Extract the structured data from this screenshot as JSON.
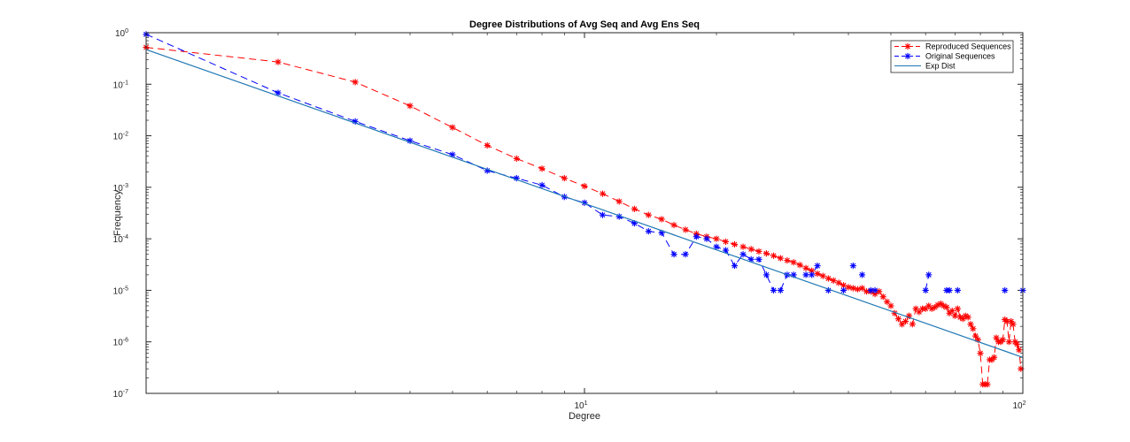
{
  "chart_data": {
    "type": "line",
    "title": "Degree Distributions of Avg Seq and Avg Ens Seq",
    "xlabel": "Degree",
    "ylabel": "Frequency",
    "xscale": "log",
    "yscale": "log",
    "xlim": [
      1,
      100
    ],
    "ylim": [
      1e-07,
      1
    ],
    "grid": false,
    "legend_position": "top-right",
    "x_ticks": [
      {
        "value": 10,
        "base": "10",
        "exp": "1"
      },
      {
        "value": 100,
        "base": "10",
        "exp": "2"
      }
    ],
    "y_ticks": [
      {
        "value": 1,
        "base": "10",
        "exp": "0"
      },
      {
        "value": 0.1,
        "base": "10",
        "exp": "-1"
      },
      {
        "value": 0.01,
        "base": "10",
        "exp": "-2"
      },
      {
        "value": 0.001,
        "base": "10",
        "exp": "-3"
      },
      {
        "value": 0.0001,
        "base": "10",
        "exp": "-4"
      },
      {
        "value": 1e-05,
        "base": "10",
        "exp": "-5"
      },
      {
        "value": 1e-06,
        "base": "10",
        "exp": "-6"
      },
      {
        "value": 1e-07,
        "base": "10",
        "exp": "-7"
      }
    ],
    "series": [
      {
        "name": "Reproduced Sequences",
        "color": "#ff0000",
        "line_style": "dashed",
        "marker": "asterisk",
        "x": [
          1,
          2,
          3,
          4,
          5,
          6,
          7,
          8,
          9,
          10,
          11,
          12,
          13,
          14,
          15,
          16,
          17,
          18,
          19,
          20,
          21,
          22,
          23,
          24,
          25,
          26,
          27,
          28,
          29,
          30,
          31,
          32,
          33,
          34,
          35,
          36,
          37,
          38,
          39,
          40,
          41,
          42,
          43,
          44,
          45,
          46,
          47,
          48,
          49,
          50,
          51,
          52,
          53,
          54,
          55,
          56,
          57,
          58,
          59,
          60,
          61,
          62,
          63,
          64,
          65,
          66,
          67,
          68,
          69,
          70,
          71,
          72,
          73,
          74,
          75,
          76,
          77,
          78,
          79,
          80,
          81,
          82,
          83,
          84,
          85,
          86,
          87,
          88,
          89,
          90,
          91,
          92,
          93,
          94,
          95,
          96,
          97,
          98,
          99
        ],
        "y": [
          0.52,
          0.27,
          0.11,
          0.038,
          0.0145,
          0.0065,
          0.0036,
          0.0023,
          0.0015,
          0.00105,
          0.00075,
          0.00053,
          0.00038,
          0.00029,
          0.00024,
          0.000185,
          0.00015,
          0.000125,
          0.00011,
          0.0001,
          8.8e-05,
          7.8e-05,
          7e-05,
          6.3e-05,
          5.7e-05,
          5.2e-05,
          4.7e-05,
          4.2e-05,
          3.8e-05,
          3.5e-05,
          3.1e-05,
          2.7e-05,
          2.4e-05,
          2.1e-05,
          1.9e-05,
          1.7e-05,
          1.55e-05,
          1.4e-05,
          1.25e-05,
          1.15e-05,
          1.1e-05,
          1.05e-05,
          1.1e-05,
          9.5e-06,
          9.5e-06,
          8.5e-06,
          9.5e-06,
          7.5e-06,
          6e-06,
          5e-06,
          3.6e-06,
          2.8e-06,
          2.2e-06,
          2.5e-06,
          3.2e-06,
          2.2e-06,
          4.4e-06,
          3.8e-06,
          4.4e-06,
          4.4e-06,
          5e-06,
          4.4e-06,
          4.7e-06,
          5.2e-06,
          5.5e-06,
          5e-06,
          4.7e-06,
          3.6e-06,
          4e-06,
          3.2e-06,
          4.4e-06,
          3e-06,
          2.8e-06,
          3.2e-06,
          3e-06,
          2.2e-06,
          1.8e-06,
          1.3e-06,
          1.1e-06,
          6e-07,
          1.5e-07,
          1.5e-07,
          1.5e-07,
          4.5e-07,
          4.5e-07,
          5e-07,
          1.2e-06,
          1e-06,
          1e-06,
          1.1e-06,
          2.7e-06,
          2.5e-06,
          1e-06,
          2.5e-06,
          2.2e-06,
          1e-06,
          9e-07,
          7e-07,
          3e-07
        ]
      },
      {
        "name": "Original Sequences",
        "color": "#0000ff",
        "line_style": "dashed",
        "marker": "asterisk",
        "x": [
          1,
          2,
          3,
          4,
          5,
          6,
          7,
          8,
          9,
          10,
          11,
          12,
          13,
          14,
          15,
          16,
          17,
          18,
          19,
          20,
          21,
          22,
          23,
          24,
          25,
          26,
          27,
          28,
          29,
          30,
          31,
          32,
          33,
          34,
          35,
          36,
          37,
          38,
          39,
          40,
          41,
          42,
          43,
          44,
          45,
          46,
          47,
          48,
          49,
          50,
          51,
          52,
          53,
          54,
          55,
          56,
          57,
          58,
          59,
          60,
          61,
          62,
          63,
          64,
          65,
          66,
          67,
          68,
          69,
          70,
          71,
          72,
          73,
          74,
          75,
          76,
          77,
          78,
          79,
          80,
          81,
          82,
          83,
          84,
          85,
          86,
          87,
          88,
          89,
          90,
          91,
          92,
          93,
          94,
          95,
          96,
          97,
          98,
          99,
          100
        ],
        "y": [
          0.93,
          0.068,
          0.019,
          0.008,
          0.0043,
          0.0021,
          0.0015,
          0.0011,
          0.00065,
          0.0005,
          0.00029,
          0.00027,
          0.0002,
          0.00014,
          0.00013,
          5e-05,
          5e-05,
          0.00011,
          0.0001,
          7e-05,
          6e-05,
          3e-05,
          5e-05,
          4e-05,
          4e-05,
          2e-05,
          1e-05,
          1e-05,
          2e-05,
          2e-05,
          null,
          2e-05,
          2e-05,
          3e-05,
          null,
          1e-05,
          null,
          null,
          1e-05,
          null,
          3e-05,
          null,
          2e-05,
          null,
          1e-05,
          1e-05,
          null,
          null,
          null,
          null,
          null,
          null,
          null,
          null,
          null,
          null,
          null,
          null,
          null,
          1e-05,
          2e-05,
          null,
          null,
          null,
          null,
          null,
          1e-05,
          1e-05,
          null,
          null,
          1e-05,
          null,
          null,
          null,
          null,
          null,
          null,
          null,
          null,
          null,
          null,
          null,
          null,
          null,
          null,
          null,
          null,
          null,
          null,
          null,
          1e-05,
          null,
          null,
          null,
          null,
          null,
          null,
          null,
          null,
          1e-05
        ]
      },
      {
        "name": "Exp Dist",
        "color": "#1f77b4",
        "line_style": "solid",
        "marker": "none",
        "x": [
          1,
          100
        ],
        "y": [
          0.47,
          5e-07
        ]
      }
    ]
  }
}
